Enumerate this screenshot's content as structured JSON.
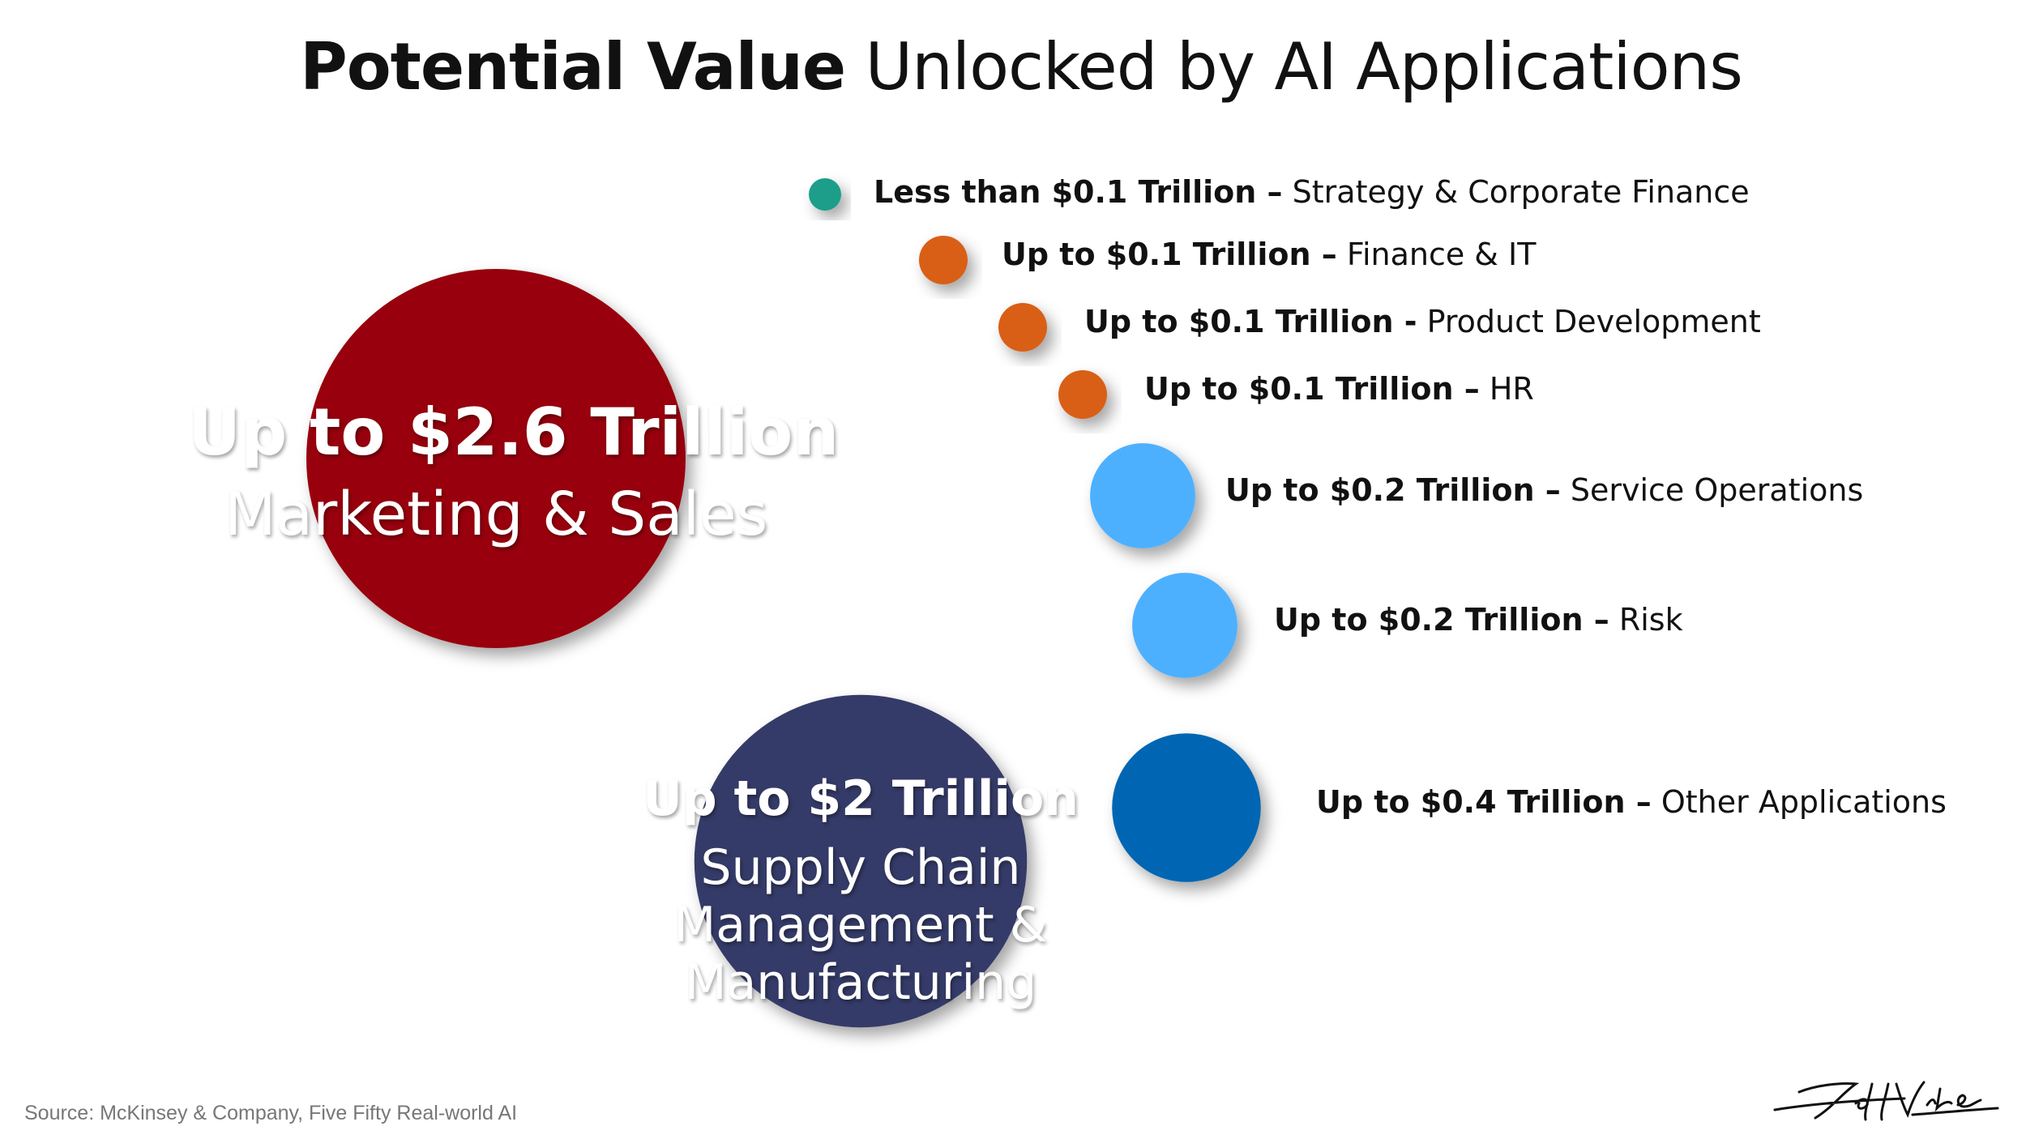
{
  "title": {
    "bold": "Potential Value",
    "rest": " Unlocked by AI Applications"
  },
  "source": "Source: McKinsey & Company, Five Fifty Real-world AI",
  "signature": "Jeff Winter",
  "chart_data": {
    "type": "bubble",
    "unit": "Trillion USD",
    "items": [
      {
        "amount_label": "Up to $2.6 Trillion",
        "separator": "",
        "category": "Marketing & Sales",
        "value": 2.6,
        "color": "#980010"
      },
      {
        "amount_label": "Up to $2 Trillion",
        "separator": "",
        "category": "Supply Chain Management & Manufacturing",
        "category_lines": [
          "Supply Chain",
          "Management &",
          "Manufacturing"
        ],
        "value": 2.0,
        "color": "#363A68"
      },
      {
        "amount_label": "Less than $0.1 Trillion",
        "separator": " – ",
        "category": "Strategy & Corporate Finance",
        "value": 0.1,
        "color": "#1A9E8A"
      },
      {
        "amount_label": "Up to $0.1 Trillion",
        "separator": " – ",
        "category": "Finance & IT",
        "value": 0.1,
        "color": "#D95F18"
      },
      {
        "amount_label": "Up to $0.1 Trillion",
        "separator": " - ",
        "category": "Product Development",
        "value": 0.1,
        "color": "#D95F18"
      },
      {
        "amount_label": "Up to $0.1 Trillion",
        "separator": " – ",
        "category": "HR",
        "value": 0.1,
        "color": "#D95F18"
      },
      {
        "amount_label": "Up to $0.2 Trillion",
        "separator": " – ",
        "category": "Service Operations",
        "value": 0.2,
        "color": "#4DB0FF"
      },
      {
        "amount_label": "Up to $0.2 Trillion",
        "separator": " – ",
        "category": "Risk",
        "value": 0.2,
        "color": "#4DB0FF"
      },
      {
        "amount_label": "Up to $0.4 Trillion",
        "separator": " – ",
        "category": "Other Applications",
        "value": 0.4,
        "color": "#0066B3"
      }
    ]
  }
}
